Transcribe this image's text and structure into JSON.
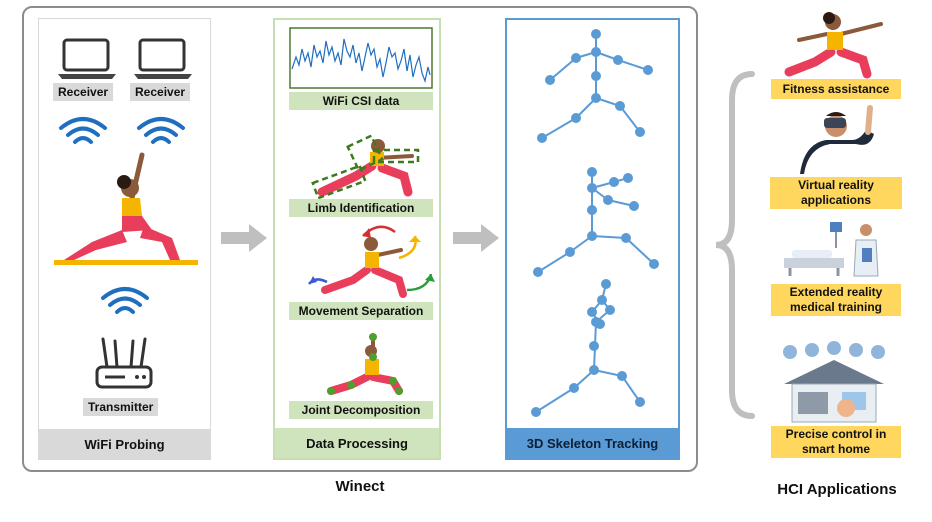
{
  "probing": {
    "receiver_left": "Receiver",
    "receiver_right": "Receiver",
    "transmitter": "Transmitter",
    "footer": "WiFi Probing"
  },
  "processing": {
    "csi_label": "WiFi CSI data",
    "limb_label": "Limb Identification",
    "movement_label": "Movement Separation",
    "joint_label": "Joint Decomposition",
    "footer": "Data Processing"
  },
  "tracking": {
    "footer": "3D Skeleton Tracking"
  },
  "system_caption": "Winect",
  "applications": {
    "caption": "HCI Applications",
    "items": [
      {
        "label": "Fitness assistance"
      },
      {
        "label": "Virtual reality applications"
      },
      {
        "label": "Extended reality medical training"
      },
      {
        "label": "Precise control in smart home"
      }
    ]
  },
  "colors": {
    "skeleton": "#5b9bd5",
    "label_yellow": "#ffd75e",
    "panel_green": "#cfe3bd",
    "wifi_blue": "#1f6fc0"
  }
}
